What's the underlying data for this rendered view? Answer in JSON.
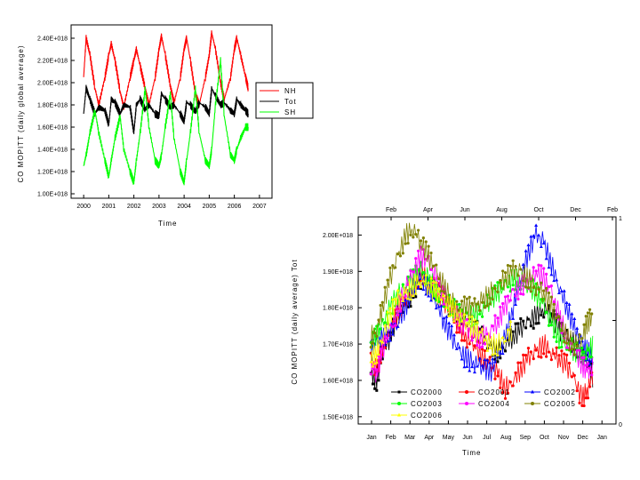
{
  "chart_data": [
    {
      "type": "line",
      "ylabel": "CO MOPITT (daily global average)",
      "xlabel": "Time",
      "x_ticks": [
        "2000",
        "2001",
        "2002",
        "2003",
        "2004",
        "2005",
        "2006",
        "2007"
      ],
      "y_ticks": [
        "1.00E+018",
        "1.20E+018",
        "1.40E+018",
        "1.60E+018",
        "1.80E+018",
        "2.00E+018",
        "2.20E+018",
        "2.40E+018"
      ],
      "xlim": [
        1999.5,
        2007.5
      ],
      "ylim": [
        9.6e+17,
        2.52e+18
      ],
      "legend_position": "right",
      "series": [
        {
          "name": "NH",
          "color": "#ff0000",
          "x": [
            2000.0,
            2000.1,
            2000.25,
            2000.45,
            2000.6,
            2000.85,
            2001.0,
            2001.1,
            2001.25,
            2001.45,
            2001.6,
            2001.85,
            2002.0,
            2002.1,
            2002.25,
            2002.45,
            2002.6,
            2002.85,
            2003.0,
            2003.1,
            2003.25,
            2003.45,
            2003.6,
            2003.85,
            2004.0,
            2004.1,
            2004.25,
            2004.45,
            2004.6,
            2004.85,
            2005.0,
            2005.1,
            2005.25,
            2005.45,
            2005.6,
            2005.85,
            2006.0,
            2006.1,
            2006.25,
            2006.45,
            2006.55
          ],
          "y": [
            2.05e+18,
            2.4e+18,
            2.25e+18,
            1.95e+18,
            1.8e+18,
            2.05e+18,
            2.25e+18,
            2.35e+18,
            2.2e+18,
            1.92e+18,
            1.78e+18,
            2.05e+18,
            2.2e+18,
            2.3e+18,
            2.15e+18,
            1.95e+18,
            1.8e+18,
            2.05e+18,
            2.3e+18,
            2.42e+18,
            2.25e+18,
            1.97e+18,
            1.82e+18,
            2.05e+18,
            2.3e+18,
            2.4e+18,
            2.2e+18,
            1.9e+18,
            1.8e+18,
            2.05e+18,
            2.25e+18,
            2.45e+18,
            2.3e+18,
            2e+18,
            1.85e+18,
            2.05e+18,
            2.3e+18,
            2.4e+18,
            2.25e+18,
            2.05e+18,
            1.95e+18
          ]
        },
        {
          "name": "Tot",
          "color": "#000000",
          "x": [
            2000.0,
            2000.1,
            2000.25,
            2000.45,
            2000.6,
            2000.85,
            2001.0,
            2001.1,
            2001.25,
            2001.45,
            2001.6,
            2001.85,
            2002.0,
            2002.1,
            2002.25,
            2002.45,
            2002.6,
            2002.85,
            2003.0,
            2003.1,
            2003.25,
            2003.45,
            2003.6,
            2003.85,
            2004.0,
            2004.1,
            2004.25,
            2004.45,
            2004.6,
            2004.85,
            2005.0,
            2005.1,
            2005.25,
            2005.45,
            2005.6,
            2005.85,
            2006.0,
            2006.1,
            2006.25,
            2006.45,
            2006.55
          ],
          "y": [
            1.72e+18,
            1.95e+18,
            1.85e+18,
            1.72e+18,
            1.78e+18,
            1.75e+18,
            1.62e+18,
            1.85e+18,
            1.82e+18,
            1.72e+18,
            1.8e+18,
            1.78e+18,
            1.55e+18,
            1.8e+18,
            1.85e+18,
            1.76e+18,
            1.8e+18,
            1.72e+18,
            1.7e+18,
            1.9e+18,
            1.85e+18,
            1.78e+18,
            1.8e+18,
            1.72e+18,
            1.65e+18,
            1.82e+18,
            1.8e+18,
            1.74e+18,
            1.82e+18,
            1.78e+18,
            1.72e+18,
            1.95e+18,
            1.88e+18,
            1.8e+18,
            1.82e+18,
            1.75e+18,
            1.72e+18,
            1.85e+18,
            1.8e+18,
            1.75e+18,
            1.72e+18
          ]
        },
        {
          "name": "SH",
          "color": "#00ff00",
          "x": [
            2000.0,
            2000.1,
            2000.25,
            2000.45,
            2000.6,
            2000.85,
            2001.0,
            2001.1,
            2001.25,
            2001.45,
            2001.6,
            2001.85,
            2002.0,
            2002.1,
            2002.25,
            2002.45,
            2002.6,
            2002.85,
            2003.0,
            2003.1,
            2003.25,
            2003.45,
            2003.6,
            2003.85,
            2004.0,
            2004.1,
            2004.25,
            2004.45,
            2004.6,
            2004.85,
            2005.0,
            2005.1,
            2005.25,
            2005.45,
            2005.6,
            2005.85,
            2006.0,
            2006.1,
            2006.25,
            2006.45,
            2006.55
          ],
          "y": [
            1.25e+18,
            1.35e+18,
            1.55e+18,
            1.75e+18,
            1.55e+18,
            1.3e+18,
            1.15e+18,
            1.3e+18,
            1.5e+18,
            1.7e+18,
            1.4e+18,
            1.2e+18,
            1.1e+18,
            1.3e+18,
            1.55e+18,
            1.95e+18,
            1.6e+18,
            1.3e+18,
            1.25e+18,
            1.35e+18,
            1.6e+18,
            1.9e+18,
            1.5e+18,
            1.2e+18,
            1.1e+18,
            1.3e+18,
            1.55e+18,
            1.95e+18,
            1.55e+18,
            1.3e+18,
            1.25e+18,
            1.4e+18,
            1.8e+18,
            2.2e+18,
            1.7e+18,
            1.35e+18,
            1.3e+18,
            1.4e+18,
            1.5e+18,
            1.6e+18,
            1.6e+18
          ]
        }
      ]
    },
    {
      "type": "scatter",
      "ylabel": "CO MOPITT (daily average) Tot",
      "xlabel": "Time",
      "x_ticks_bottom": [
        "Jan",
        "Feb",
        "Mar",
        "Apr",
        "May",
        "Jun",
        "Jul",
        "Aug",
        "Sep",
        "Oct",
        "Nov",
        "Dec",
        "Jan"
      ],
      "x_ticks_top": [
        "Feb",
        "Apr",
        "Jun",
        "Aug",
        "Oct",
        "Dec",
        "Feb"
      ],
      "y_ticks": [
        "1.50E+018",
        "1.60E+018",
        "1.70E+018",
        "1.80E+018",
        "1.90E+018",
        "2.00E+018"
      ],
      "right_ticks": [
        "1",
        "0"
      ],
      "xlim": [
        0,
        12.5
      ],
      "ylim": [
        1.48e+18,
        2.05e+18
      ],
      "legend_position": "bottom",
      "series": [
        {
          "name": "CO2000",
          "color": "#000000",
          "marker": "square",
          "x": [
            0.2,
            0.5,
            0.8,
            1.2,
            1.6,
            2.0,
            2.4,
            2.8,
            3.2,
            3.6,
            4.0,
            4.4,
            4.8,
            5.2,
            5.6,
            6.0,
            6.4,
            6.8,
            7.2,
            7.6,
            8.0,
            8.4,
            8.8,
            9.2,
            9.6,
            10.0,
            10.4,
            10.8,
            11.2,
            11.5,
            11.8
          ],
          "y": [
            1.62e+18,
            1.6e+18,
            1.68e+18,
            1.72e+18,
            1.78e+18,
            1.8e+18,
            1.85e+18,
            1.88e+18,
            1.86e+18,
            1.84e+18,
            1.82e+18,
            1.8e+18,
            1.78e+18,
            1.76e+18,
            1.74e+18,
            1.72e+18,
            1.7e+18,
            1.68e+18,
            1.7e+18,
            1.72e+18,
            1.74e+18,
            1.76e+18,
            1.78e+18,
            1.8e+18,
            1.78e+18,
            1.74e+18,
            1.72e+18,
            1.7e+18,
            1.68e+18,
            1.65e+18,
            1.6e+18
          ]
        },
        {
          "name": "CO2001",
          "color": "#ff0000",
          "marker": "circle",
          "x": [
            0.2,
            0.5,
            0.8,
            1.2,
            1.6,
            2.0,
            2.4,
            2.8,
            3.2,
            3.6,
            4.0,
            4.4,
            4.8,
            5.2,
            5.6,
            6.0,
            6.4,
            6.8,
            7.2,
            7.6,
            8.0,
            8.4,
            8.8,
            9.2,
            9.6,
            10.0,
            10.4,
            10.8,
            11.2,
            11.5,
            11.8
          ],
          "y": [
            1.65e+18,
            1.63e+18,
            1.7e+18,
            1.74e+18,
            1.78e+18,
            1.82e+18,
            1.86e+18,
            1.9e+18,
            1.88e+18,
            1.85e+18,
            1.82e+18,
            1.78e+18,
            1.75e+18,
            1.72e+18,
            1.7e+18,
            1.66e+18,
            1.64e+18,
            1.62e+18,
            1.58e+18,
            1.6e+18,
            1.63e+18,
            1.66e+18,
            1.68e+18,
            1.7e+18,
            1.68e+18,
            1.66e+18,
            1.64e+18,
            1.6e+18,
            1.55e+18,
            1.58e+18,
            1.62e+18
          ]
        },
        {
          "name": "CO2002",
          "color": "#0000ff",
          "marker": "triangle",
          "x": [
            0.2,
            0.5,
            0.8,
            1.2,
            1.6,
            2.0,
            2.4,
            2.8,
            3.2,
            3.6,
            4.0,
            4.4,
            4.8,
            5.2,
            5.6,
            6.0,
            6.4,
            6.8,
            7.2,
            7.6,
            8.0,
            8.4,
            8.8,
            9.2,
            9.6,
            10.0,
            10.4,
            10.8,
            11.2,
            11.5,
            11.8
          ],
          "y": [
            1.68e+18,
            1.7e+18,
            1.72e+18,
            1.74e+18,
            1.76e+18,
            1.8e+18,
            1.85e+18,
            1.88e+18,
            1.86e+18,
            1.82e+18,
            1.76e+18,
            1.72e+18,
            1.68e+18,
            1.66e+18,
            1.65e+18,
            1.64e+18,
            1.62e+18,
            1.66e+18,
            1.72e+18,
            1.8e+18,
            1.88e+18,
            1.95e+18,
            2e+18,
            1.98e+18,
            1.92e+18,
            1.86e+18,
            1.8e+18,
            1.74e+18,
            1.7e+18,
            1.68e+18,
            1.66e+18
          ]
        },
        {
          "name": "CO2003",
          "color": "#00ff00",
          "marker": "circle",
          "x": [
            0.2,
            0.5,
            0.8,
            1.2,
            1.6,
            2.0,
            2.4,
            2.8,
            3.2,
            3.6,
            4.0,
            4.4,
            4.8,
            5.2,
            5.6,
            6.0,
            6.4,
            6.8,
            7.2,
            7.6,
            8.0,
            8.4,
            8.8,
            9.2,
            9.6,
            10.0,
            10.4,
            10.8,
            11.2,
            11.5,
            11.8
          ],
          "y": [
            1.7e+18,
            1.72e+18,
            1.75e+18,
            1.8e+18,
            1.84e+18,
            1.86e+18,
            1.88e+18,
            1.9e+18,
            1.88e+18,
            1.85e+18,
            1.82e+18,
            1.8e+18,
            1.78e+18,
            1.78e+18,
            1.78e+18,
            1.8e+18,
            1.82e+18,
            1.84e+18,
            1.86e+18,
            1.88e+18,
            1.88e+18,
            1.86e+18,
            1.84e+18,
            1.8e+18,
            1.76e+18,
            1.72e+18,
            1.7e+18,
            1.68e+18,
            1.66e+18,
            1.68e+18,
            1.7e+18
          ]
        },
        {
          "name": "CO2004",
          "color": "#ff00ff",
          "marker": "circle",
          "x": [
            0.2,
            0.5,
            0.8,
            1.2,
            1.6,
            2.0,
            2.4,
            2.8,
            3.2,
            3.6,
            4.0,
            4.4,
            4.8,
            5.2,
            5.6,
            6.0,
            6.4,
            6.8,
            7.2,
            7.6,
            8.0,
            8.4,
            8.8,
            9.2,
            9.6,
            10.0,
            10.4,
            10.8,
            11.2,
            11.5,
            11.8
          ],
          "y": [
            1.64e+18,
            1.62e+18,
            1.68e+18,
            1.74e+18,
            1.8e+18,
            1.86e+18,
            1.9e+18,
            1.94e+18,
            1.92e+18,
            1.88e+18,
            1.84e+18,
            1.8e+18,
            1.76e+18,
            1.74e+18,
            1.72e+18,
            1.72e+18,
            1.74e+18,
            1.76e+18,
            1.8e+18,
            1.84e+18,
            1.86e+18,
            1.88e+18,
            1.9e+18,
            1.88e+18,
            1.84e+18,
            1.78e+18,
            1.72e+18,
            1.68e+18,
            1.64e+18,
            1.62e+18,
            1.64e+18
          ]
        },
        {
          "name": "CO2005",
          "color": "#808000",
          "marker": "circle",
          "x": [
            0.2,
            0.5,
            0.8,
            1.2,
            1.6,
            2.0,
            2.4,
            2.8,
            3.2,
            3.6,
            4.0,
            4.4,
            4.8,
            5.2,
            5.6,
            6.0,
            6.4,
            6.8,
            7.2,
            7.6,
            8.0,
            8.4,
            8.8,
            9.2,
            9.6,
            10.0,
            10.4,
            10.8,
            11.2,
            11.5,
            11.8
          ],
          "y": [
            1.72e+18,
            1.74e+18,
            1.8e+18,
            1.88e+18,
            1.94e+18,
            2e+18,
            2.02e+18,
            1.98e+18,
            1.94e+18,
            1.9e+18,
            1.86e+18,
            1.82e+18,
            1.8e+18,
            1.8e+18,
            1.8e+18,
            1.82e+18,
            1.84e+18,
            1.86e+18,
            1.88e+18,
            1.9e+18,
            1.9e+18,
            1.88e+18,
            1.86e+18,
            1.84e+18,
            1.8e+18,
            1.76e+18,
            1.72e+18,
            1.7e+18,
            1.72e+18,
            1.76e+18,
            1.78e+18
          ]
        },
        {
          "name": "CO2006",
          "color": "#ffff00",
          "marker": "triangle",
          "x": [
            0.2,
            0.5,
            0.8,
            1.2,
            1.6,
            2.0,
            2.4,
            2.8,
            3.2,
            3.6,
            4.0,
            4.4,
            4.8,
            5.2,
            5.6,
            6.0,
            6.4,
            6.8,
            7.2,
            7.6
          ],
          "y": [
            1.66e+18,
            1.68e+18,
            1.72e+18,
            1.78e+18,
            1.82e+18,
            1.84e+18,
            1.86e+18,
            1.88e+18,
            1.86e+18,
            1.84e+18,
            1.82e+18,
            1.8e+18,
            1.78e+18,
            1.76e+18,
            1.74e+18,
            1.72e+18,
            1.7e+18,
            1.7e+18,
            1.72e+18,
            1.74e+18
          ]
        }
      ]
    }
  ]
}
